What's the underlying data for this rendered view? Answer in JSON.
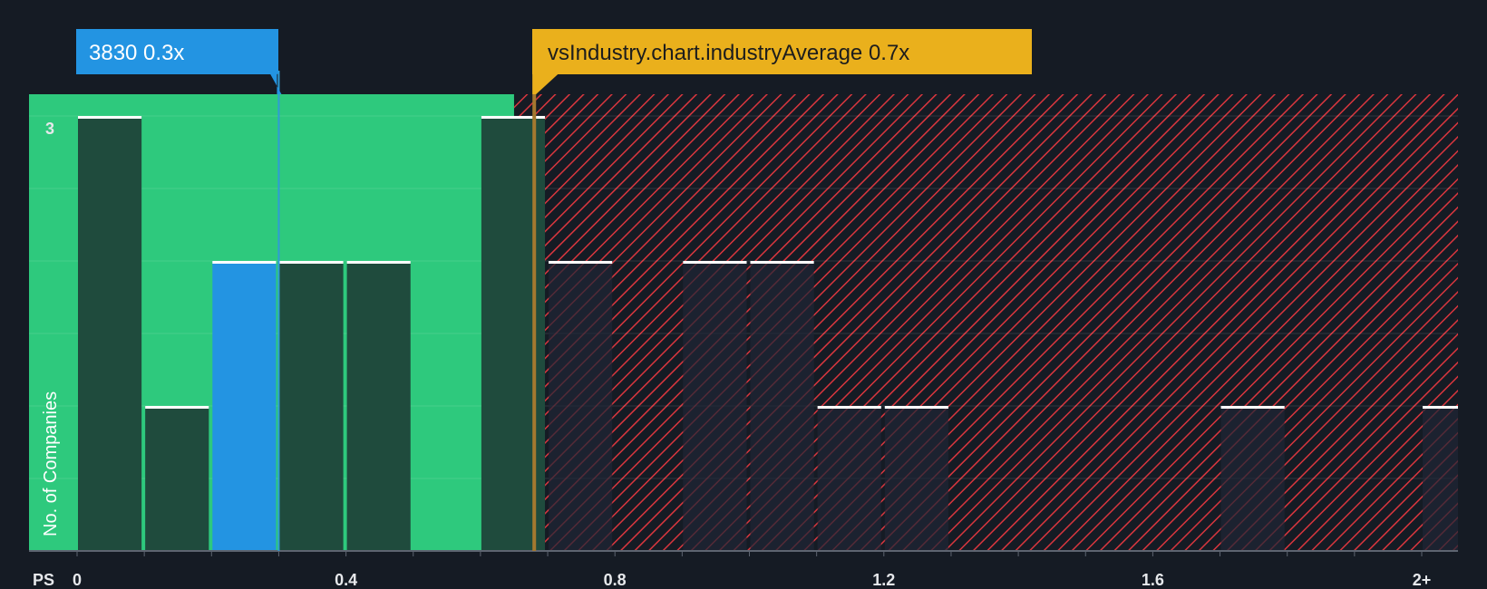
{
  "chart_data": {
    "type": "bar",
    "title": "",
    "xlabel": "PS",
    "ylabel": "No. of Companies",
    "xlim": [
      0,
      2.05
    ],
    "ylim": [
      0,
      3.15
    ],
    "bin_width": 0.1,
    "x_ticks": [
      {
        "value": 0,
        "label": "0"
      },
      {
        "value": 0.4,
        "label": "0.4"
      },
      {
        "value": 0.8,
        "label": "0.8"
      },
      {
        "value": 1.2,
        "label": "1.2"
      },
      {
        "value": 1.6,
        "label": "1.6"
      },
      {
        "value": 2.0,
        "label": "2+"
      }
    ],
    "y_ticks": [
      {
        "value": 3,
        "label": "3"
      }
    ],
    "bars": [
      {
        "x": 0.0,
        "value": 3
      },
      {
        "x": 0.1,
        "value": 1
      },
      {
        "x": 0.2,
        "value": 2,
        "highlight": true
      },
      {
        "x": 0.3,
        "value": 2
      },
      {
        "x": 0.4,
        "value": 2
      },
      {
        "x": 0.6,
        "value": 3
      },
      {
        "x": 0.7,
        "value": 2
      },
      {
        "x": 0.9,
        "value": 2
      },
      {
        "x": 1.0,
        "value": 2
      },
      {
        "x": 1.1,
        "value": 1
      },
      {
        "x": 1.2,
        "value": 1
      },
      {
        "x": 1.7,
        "value": 1
      },
      {
        "x": 2.0,
        "value": 1
      }
    ],
    "company": {
      "label": "3830 0.3x",
      "value": 0.3
    },
    "industry": {
      "label": "vsIndustry.chart.industryAverage 0.7x",
      "value": 0.68
    },
    "undervalued_until": 0.65
  },
  "colors": {
    "background": "#151b24",
    "good_zone": "#2ec97d",
    "bad_hatch": "#d9363e",
    "bar_dark": "#1f4b3d",
    "bar_highlight": "#2394e2",
    "company_line": "#2f9bd6",
    "industry_fill": "#eab01c",
    "industry_line": "#a4782f"
  }
}
